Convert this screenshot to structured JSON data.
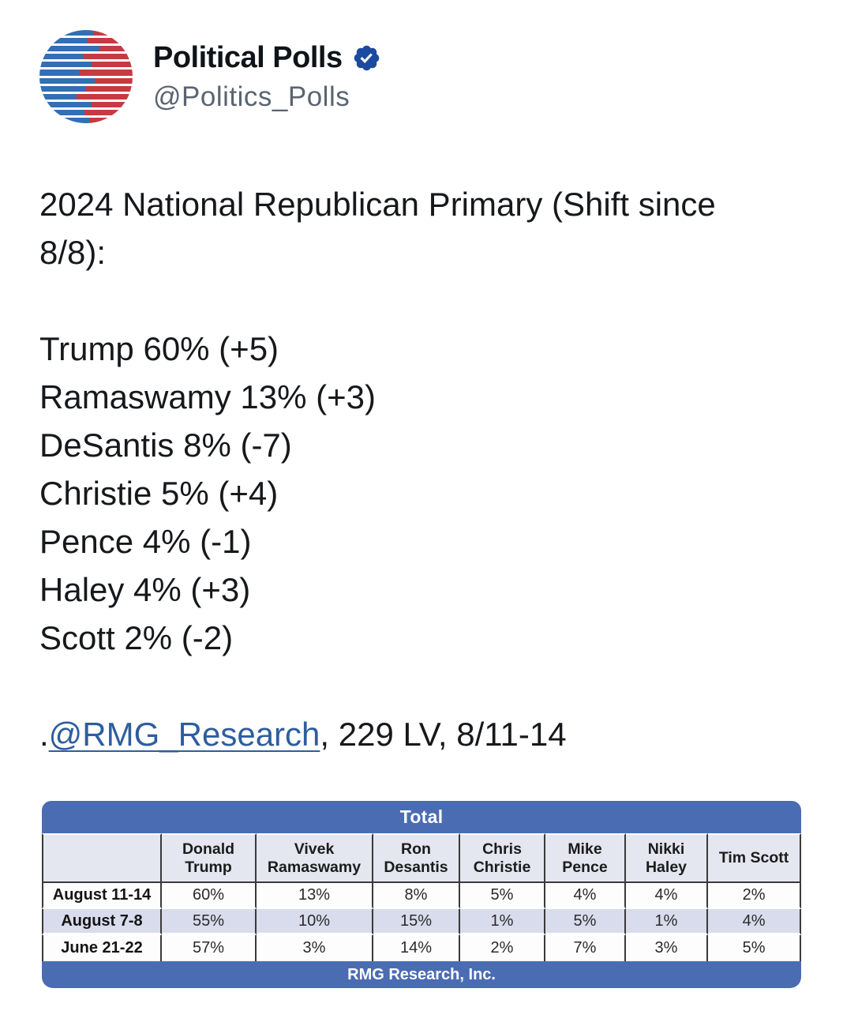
{
  "header": {
    "display_name": "Political Polls",
    "handle": "@Politics_Polls",
    "verified_badge": "verified-checkmark",
    "badge_color": "#1b4a9e",
    "avatar_colors": {
      "blue": "#336fb3",
      "red": "#c53b42"
    }
  },
  "tweet": {
    "title_lines": [
      "2024 National Republican Primary (Shift since",
      "8/8):"
    ],
    "results": [
      "Trump 60% (+5)",
      "Ramaswamy 13% (+3)",
      "DeSantis 8% (-7)",
      "Christie 5% (+4)",
      "Pence 4% (-1)",
      "Haley 4% (+3)",
      "Scott 2% (-2)"
    ],
    "source_prefix": ".",
    "source_link": "@RMG_Research",
    "source_suffix": ", 229 LV, 8/11-14",
    "link_color": "#2d5e9e"
  },
  "table": {
    "title": "Total",
    "footer": "RMG Research, Inc.",
    "columns": [
      "",
      "Donald Trump",
      "Vivek Ramaswamy",
      "Ron Desantis",
      "Chris Christie",
      "Mike Pence",
      "Nikki Haley",
      "Tim Scott"
    ],
    "rows": [
      {
        "label": "August 11-14",
        "values": [
          "60%",
          "13%",
          "8%",
          "5%",
          "4%",
          "4%",
          "2%"
        ]
      },
      {
        "label": "August 7-8",
        "values": [
          "55%",
          "10%",
          "15%",
          "1%",
          "5%",
          "1%",
          "4%"
        ]
      },
      {
        "label": "June 21-22",
        "values": [
          "57%",
          "3%",
          "14%",
          "2%",
          "7%",
          "3%",
          "5%"
        ]
      }
    ],
    "colors": {
      "header_blue": "#4a6cb3",
      "stripe": "#d8dcec",
      "header_row_bg": "#e4e6f0"
    }
  },
  "chart_data": {
    "type": "table",
    "title": "Total",
    "categories": [
      "Donald Trump",
      "Vivek Ramaswamy",
      "Ron Desantis",
      "Chris Christie",
      "Mike Pence",
      "Nikki Haley",
      "Tim Scott"
    ],
    "series": [
      {
        "name": "August 11-14",
        "values": [
          60,
          13,
          8,
          5,
          4,
          4,
          2
        ]
      },
      {
        "name": "August 7-8",
        "values": [
          55,
          10,
          15,
          1,
          5,
          1,
          4
        ]
      },
      {
        "name": "June 21-22",
        "values": [
          57,
          3,
          14,
          2,
          7,
          3,
          5
        ]
      }
    ],
    "units": "%",
    "source": "RMG Research, Inc.",
    "shift_since_8_8": {
      "Trump": 5,
      "Ramaswamy": 3,
      "DeSantis": -7,
      "Christie": 4,
      "Pence": -1,
      "Haley": 3,
      "Scott": -2
    }
  }
}
